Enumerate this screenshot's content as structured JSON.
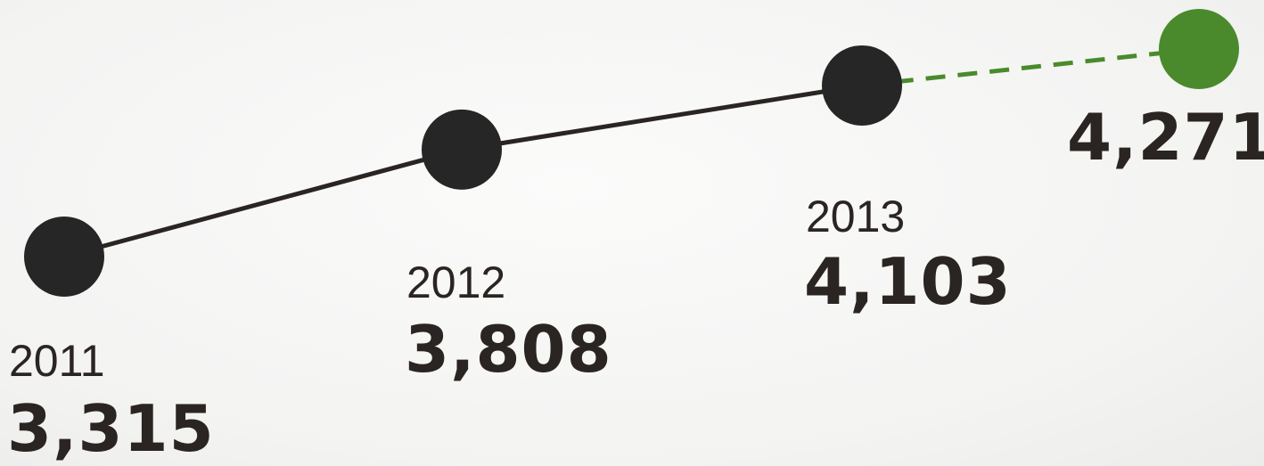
{
  "chart_data": {
    "type": "line",
    "title": "",
    "xlabel": "",
    "ylabel": "",
    "x": [
      "2011",
      "2012",
      "2013",
      ""
    ],
    "values": [
      3315,
      3808,
      4103,
      4271
    ],
    "value_labels": [
      "3,315",
      "3,808",
      "4,103",
      "4,271"
    ],
    "segments": [
      {
        "from": 0,
        "to": 1,
        "style": "solid"
      },
      {
        "from": 1,
        "to": 2,
        "style": "solid"
      },
      {
        "from": 2,
        "to": 3,
        "style": "dashed"
      }
    ],
    "grid": false,
    "legend": false,
    "colors": {
      "actual": "#262626",
      "projected": "#4a8a2c",
      "text": "#2a2522"
    }
  }
}
